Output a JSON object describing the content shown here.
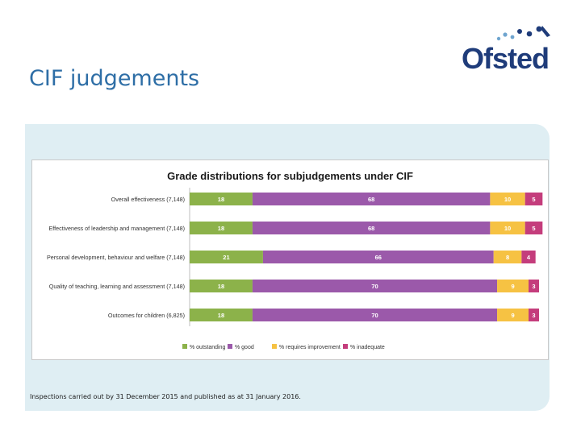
{
  "slide": {
    "title": "CIF judgements",
    "logo_text": "Ofsted",
    "footnote": "Inspections carried out by 31 December 2015 and published as at 31 January 2016."
  },
  "colors": {
    "title": "#2e6ea6",
    "panel": "#dfeef3",
    "logo": "#1f3c7a"
  },
  "chart_data": {
    "type": "bar",
    "orientation": "horizontal",
    "stacked": true,
    "title": "Grade distributions for subjudgements under CIF",
    "categories": [
      "Overall effectiveness  (7,148)",
      "Effectiveness of leadership and management (7,148)",
      "Personal development, behaviour and welfare (7,148)",
      "Quality of teaching, learning and assessment  (7,148)",
      "Outcomes for children  (6,825)"
    ],
    "series": [
      {
        "name": "% outstanding",
        "color": "#8cb24a",
        "values": [
          18,
          18,
          21,
          18,
          18
        ]
      },
      {
        "name": "% good",
        "color": "#9b59aa",
        "values": [
          68,
          68,
          66,
          70,
          70
        ]
      },
      {
        "name": "% requires improvement",
        "color": "#f6c243",
        "values": [
          10,
          10,
          8,
          9,
          9
        ]
      },
      {
        "name": "% inadequate",
        "color": "#c43d7c",
        "values": [
          5,
          5,
          4,
          3,
          3
        ]
      }
    ],
    "xlim": [
      0,
      100
    ],
    "legend": "bottom",
    "grid": false
  }
}
